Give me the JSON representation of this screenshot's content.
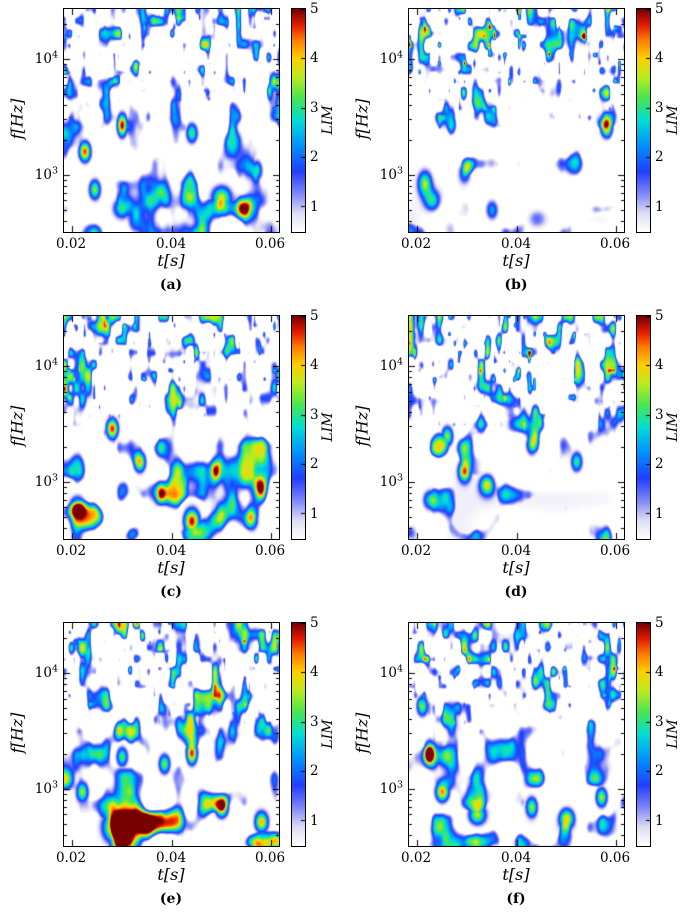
{
  "figure": {
    "background": "#ffffff",
    "axes": {
      "xlabel_letter": "t",
      "xlabel_unit": "[s]",
      "ylabel_letter": "f",
      "ylabel_unit": "[Hz]",
      "x_tick_labels": [
        "0.02",
        "0.04",
        "0.06"
      ],
      "y_tick_base": "10",
      "y_tick_exps": [
        "4",
        "3"
      ]
    },
    "colorbar": {
      "label": "LIM",
      "tick_labels": [
        "5",
        "4",
        "3",
        "2",
        "1"
      ],
      "range": [
        0.5,
        5
      ]
    },
    "colormap": {
      "name": "white-jet",
      "stops": [
        [
          0.0,
          255,
          255,
          255
        ],
        [
          0.08,
          224,
          222,
          243
        ],
        [
          0.17,
          128,
          136,
          248
        ],
        [
          0.27,
          34,
          64,
          255
        ],
        [
          0.39,
          0,
          148,
          255
        ],
        [
          0.5,
          0,
          222,
          214
        ],
        [
          0.6,
          72,
          230,
          82
        ],
        [
          0.7,
          192,
          235,
          32
        ],
        [
          0.78,
          255,
          208,
          0
        ],
        [
          0.86,
          255,
          128,
          0
        ],
        [
          0.93,
          228,
          28,
          0
        ],
        [
          1.0,
          120,
          0,
          0
        ]
      ]
    }
  },
  "chart_data": [
    {
      "panel": "a",
      "caption": "(a)",
      "type": "heatmap",
      "xlabel": "t[s]",
      "ylabel": "f[Hz]",
      "x_range_s": [
        0.0184,
        0.0616
      ],
      "x_ticks_s": [
        0.02,
        0.04,
        0.06
      ],
      "y_scale": "log",
      "y_range_hz": [
        320,
        27000
      ],
      "y_ticks_hz": [
        10000,
        1000
      ],
      "colorbar_label": "LIM",
      "lim_range": [
        0.5,
        5
      ],
      "description": "Dense fine-scale LIM texture above 3 kHz, dripping mid-band structures, strong blobs near bottom-left and around t=0.05 s at 500-700 Hz.",
      "texture": {
        "seed": 101,
        "threshold_top": 0.5,
        "threshold_mid": 0.57,
        "threshold_bottom": 0.6,
        "speckle": 0.55,
        "wash": 0.3,
        "bottom_gain": 1.2
      },
      "hotspots": [
        {
          "t": 0.0225,
          "f_hz": 1600,
          "lim": 4.6
        },
        {
          "t": 0.03,
          "f_hz": 2700,
          "lim": 5.0,
          "rt_s": 0.001,
          "rf_dec": 0.1
        },
        {
          "t": 0.0245,
          "f_hz": 750,
          "lim": 3.4
        },
        {
          "t": 0.03,
          "f_hz": 520,
          "lim": 3.0,
          "rt_s": 0.0018
        },
        {
          "t": 0.044,
          "f_hz": 2300,
          "lim": 3.2
        },
        {
          "t": 0.05,
          "f_hz": 640,
          "lim": 3.6,
          "rt_s": 0.002,
          "rf_dec": 0.1
        },
        {
          "t": 0.0545,
          "f_hz": 520,
          "lim": 3.8,
          "rt_s": 0.0016
        },
        {
          "t": 0.057,
          "f_hz": 1100,
          "lim": 3.0
        }
      ]
    },
    {
      "panel": "b",
      "caption": "(b)",
      "type": "heatmap",
      "xlabel": "t[s]",
      "ylabel": "f[Hz]",
      "x_range_s": [
        0.0184,
        0.0616
      ],
      "x_ticks_s": [
        0.02,
        0.04,
        0.06
      ],
      "y_scale": "log",
      "y_range_hz": [
        320,
        27000
      ],
      "y_ticks_hz": [
        10000,
        1000
      ],
      "colorbar_label": "LIM",
      "lim_range": [
        0.5,
        5
      ],
      "description": "Very dense high-frequency band with many LIM=4-5 speckles above 3 kHz; lower half mostly white with blue cluster near t=0.022 s, 600-1000 Hz.",
      "texture": {
        "seed": 202,
        "threshold_top": 0.47,
        "threshold_mid": 0.63,
        "threshold_bottom": 0.8,
        "speckle": 1.05,
        "wash": 0.75,
        "bottom_gain": 1.0
      },
      "hotspots": [
        {
          "t": 0.0215,
          "f_hz": 850,
          "lim": 3.2,
          "rt_s": 0.0014,
          "rf_dec": 0.11
        },
        {
          "t": 0.023,
          "f_hz": 600,
          "lim": 2.6,
          "rt_s": 0.0016
        },
        {
          "t": 0.0295,
          "f_hz": 1050,
          "lim": 2.2
        },
        {
          "t": 0.035,
          "f_hz": 500,
          "lim": 2.4,
          "rt_s": 0.0013
        },
        {
          "t": 0.058,
          "f_hz": 2600,
          "lim": 4.4
        },
        {
          "t": 0.044,
          "f_hz": 420,
          "lim": 1.2,
          "rt_s": 0.002
        }
      ]
    },
    {
      "panel": "c",
      "caption": "(c)",
      "type": "heatmap",
      "xlabel": "t[s]",
      "ylabel": "f[Hz]",
      "x_range_s": [
        0.0184,
        0.0616
      ],
      "x_ticks_s": [
        0.02,
        0.04,
        0.06
      ],
      "y_scale": "log",
      "y_range_hz": [
        320,
        27000
      ],
      "y_ticks_hz": [
        10000,
        1000
      ],
      "colorbar_label": "LIM",
      "lim_range": [
        0.5,
        5
      ],
      "description": "Intermittent structures across the whole plane; red spots near t=0.028 s / 3 kHz and t=0.044 s / 450 Hz, yellow blob near t=0.058 s / 900 Hz.",
      "texture": {
        "seed": 303,
        "threshold_top": 0.49,
        "threshold_mid": 0.53,
        "threshold_bottom": 0.56,
        "speckle": 0.65,
        "wash": 0.3,
        "bottom_gain": 1.15
      },
      "hotspots": [
        {
          "t": 0.028,
          "f_hz": 2900,
          "lim": 4.8
        },
        {
          "t": 0.0335,
          "f_hz": 1500,
          "lim": 4.2
        },
        {
          "t": 0.044,
          "f_hz": 460,
          "lim": 4.9,
          "rt_s": 0.0016,
          "rf_dec": 0.11
        },
        {
          "t": 0.058,
          "f_hz": 900,
          "lim": 4.0
        },
        {
          "t": 0.021,
          "f_hz": 620,
          "lim": 3.2,
          "rt_s": 0.0016
        },
        {
          "t": 0.049,
          "f_hz": 1250,
          "lim": 3.4
        },
        {
          "t": 0.038,
          "f_hz": 800,
          "lim": 3.0
        },
        {
          "t": 0.056,
          "f_hz": 480,
          "lim": 3.4
        }
      ]
    },
    {
      "panel": "d",
      "caption": "(d)",
      "type": "heatmap",
      "xlabel": "t[s]",
      "ylabel": "f[Hz]",
      "x_range_s": [
        0.0184,
        0.0616
      ],
      "x_ticks_s": [
        0.02,
        0.04,
        0.06
      ],
      "y_scale": "log",
      "y_range_hz": [
        320,
        27000
      ],
      "y_ticks_hz": [
        10000,
        1000
      ],
      "colorbar_label": "LIM",
      "lim_range": [
        0.5,
        5
      ],
      "description": "Dense warm speckles in the upper band; moderate mid-band drips; sparse pale low-frequency region with a red spot near t=0.03 s / 1.2 kHz.",
      "texture": {
        "seed": 404,
        "threshold_top": 0.48,
        "threshold_mid": 0.57,
        "threshold_bottom": 0.68,
        "speckle": 0.95,
        "wash": 0.8,
        "bottom_gain": 1.0
      },
      "hotspots": [
        {
          "t": 0.0295,
          "f_hz": 1250,
          "lim": 4.4
        },
        {
          "t": 0.034,
          "f_hz": 950,
          "lim": 3.7,
          "rt_s": 0.0015
        },
        {
          "t": 0.026,
          "f_hz": 2500,
          "lim": 3.5
        },
        {
          "t": 0.052,
          "f_hz": 1500,
          "lim": 3.1
        },
        {
          "t": 0.043,
          "f_hz": 2100,
          "lim": 3.0
        },
        {
          "t": 0.0225,
          "f_hz": 700,
          "lim": 2.6,
          "rt_s": 0.0015
        }
      ]
    },
    {
      "panel": "e",
      "caption": "(e)",
      "type": "heatmap",
      "xlabel": "t[s]",
      "ylabel": "f[Hz]",
      "x_range_s": [
        0.0184,
        0.0616
      ],
      "x_ticks_s": [
        0.02,
        0.04,
        0.06
      ],
      "y_scale": "log",
      "y_range_hz": [
        320,
        27000
      ],
      "y_ticks_hz": [
        10000,
        1000
      ],
      "colorbar_label": "LIM",
      "lim_range": [
        0.5,
        5
      ],
      "description": "Strong dark-red LIM=5 blob at t=0.029 s / ~470 Hz, red spots at t=0.044 s / 2 kHz and t=0.05 s / 700 Hz, colorful low-frequency band.",
      "texture": {
        "seed": 505,
        "threshold_top": 0.5,
        "threshold_mid": 0.55,
        "threshold_bottom": 0.52,
        "speckle": 0.55,
        "wash": 0.3,
        "bottom_gain": 1.35
      },
      "hotspots": [
        {
          "t": 0.029,
          "f_hz": 470,
          "lim": 5.2,
          "rt_s": 0.0026,
          "rf_dec": 0.13
        },
        {
          "t": 0.034,
          "f_hz": 540,
          "lim": 4.0,
          "rt_s": 0.0018
        },
        {
          "t": 0.044,
          "f_hz": 2050,
          "lim": 4.8,
          "rt_s": 0.0011,
          "rf_dec": 0.1
        },
        {
          "t": 0.05,
          "f_hz": 700,
          "lim": 4.7,
          "rt_s": 0.0013
        },
        {
          "t": 0.058,
          "f_hz": 520,
          "lim": 4.2,
          "rt_s": 0.0014
        },
        {
          "t": 0.022,
          "f_hz": 950,
          "lim": 3.4
        },
        {
          "t": 0.0385,
          "f_hz": 1650,
          "lim": 3.4
        },
        {
          "t": 0.03,
          "f_hz": 1900,
          "lim": 3.2
        }
      ]
    },
    {
      "panel": "f",
      "caption": "(f)",
      "type": "heatmap",
      "xlabel": "t[s]",
      "ylabel": "f[Hz]",
      "x_range_s": [
        0.0184,
        0.0616
      ],
      "x_ticks_s": [
        0.02,
        0.04,
        0.06
      ],
      "y_scale": "log",
      "y_range_hz": [
        320,
        27000
      ],
      "y_ticks_hz": [
        10000,
        1000
      ],
      "colorbar_label": "LIM",
      "lim_range": [
        0.5,
        5
      ],
      "description": "Dark-red spot at t=0.022 s / 2 kHz and red blob at t=0.025 s / 950 Hz; green-yellow low-frequency band from 0.03 to 0.06 s.",
      "texture": {
        "seed": 606,
        "threshold_top": 0.51,
        "threshold_mid": 0.56,
        "threshold_bottom": 0.56,
        "speckle": 0.55,
        "wash": 0.4,
        "bottom_gain": 1.25
      },
      "hotspots": [
        {
          "t": 0.0225,
          "f_hz": 2050,
          "lim": 5.1,
          "rt_s": 0.0011,
          "rf_dec": 0.1
        },
        {
          "t": 0.025,
          "f_hz": 950,
          "lim": 4.4,
          "rt_s": 0.0014
        },
        {
          "t": 0.032,
          "f_hz": 600,
          "lim": 3.6,
          "rt_s": 0.0018
        },
        {
          "t": 0.043,
          "f_hz": 700,
          "lim": 3.4
        },
        {
          "t": 0.05,
          "f_hz": 560,
          "lim": 3.9,
          "rt_s": 0.0016
        },
        {
          "t": 0.057,
          "f_hz": 850,
          "lim": 3.6
        },
        {
          "t": 0.021,
          "f_hz": 5200,
          "lim": 3.4
        }
      ]
    }
  ]
}
